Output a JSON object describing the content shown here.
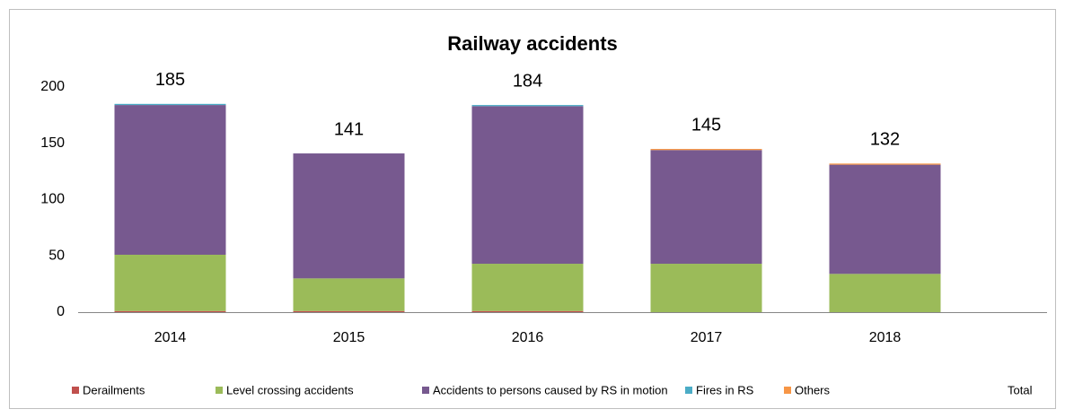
{
  "chart_data": {
    "type": "bar",
    "stacked": true,
    "title": "Railway accidents",
    "categories": [
      "2014",
      "2015",
      "2016",
      "2017",
      "2018"
    ],
    "series": [
      {
        "name": "Derailments",
        "color": "#c0504d",
        "values": [
          1,
          1,
          1,
          0,
          0
        ]
      },
      {
        "name": "Level crossing accidents",
        "color": "#9bbb59",
        "values": [
          50,
          29,
          42,
          43,
          34
        ]
      },
      {
        "name": "Accidents to persons caused by RS in motion",
        "color": "#77598f",
        "values": [
          133,
          111,
          140,
          101,
          97
        ]
      },
      {
        "name": "Fires in RS",
        "color": "#4bacc6",
        "values": [
          1,
          0,
          1,
          0,
          0
        ]
      },
      {
        "name": "Others",
        "color": "#f79646",
        "values": [
          0,
          0,
          0,
          1,
          1
        ]
      },
      {
        "name": "Total",
        "values": [
          185,
          141,
          184,
          145,
          132
        ]
      }
    ],
    "ylim": [
      0,
      200
    ],
    "yticks": [
      0,
      50,
      100,
      150,
      200
    ],
    "grid": false,
    "legend": "bottom"
  }
}
